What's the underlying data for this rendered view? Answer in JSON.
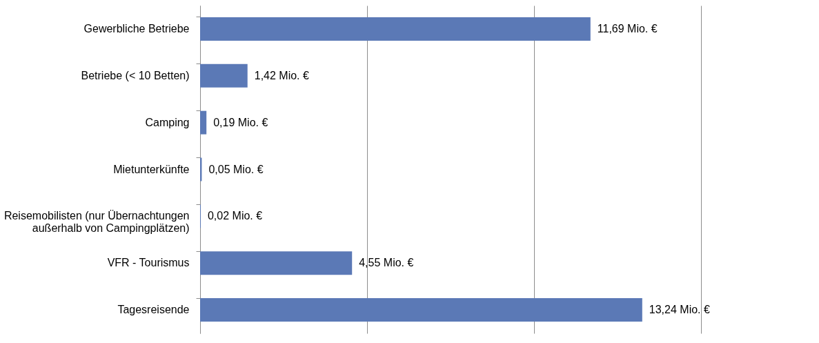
{
  "chart_data": {
    "type": "bar",
    "orientation": "horizontal",
    "categories": [
      "Gewerbliche Betriebe",
      "Betriebe (< 10 Betten)",
      "Camping",
      "Mietunterkünfte",
      "Reisemobilisten (nur Übernachtungen außerhalb von Campingplätzen)",
      "VFR - Tourismus",
      "Tagesreisende"
    ],
    "values": [
      11.69,
      1.42,
      0.19,
      0.05,
      0.02,
      4.55,
      13.24
    ],
    "value_labels": [
      "11,69 Mio. €",
      "1,42 Mio. €",
      "0,19 Mio. €",
      "0,05 Mio. €",
      "0,02 Mio. €",
      "4,55 Mio. €",
      "13,24 Mio. €"
    ],
    "color": "#5b79b6",
    "xlim": [
      0,
      15
    ],
    "xticks": [
      {
        "value": 0,
        "label": null
      },
      {
        "value": 5,
        "label": null
      },
      {
        "value": 10,
        "label": null
      },
      {
        "value": 15,
        "label": null
      }
    ],
    "grid": "x",
    "tick_labels": "y"
  }
}
